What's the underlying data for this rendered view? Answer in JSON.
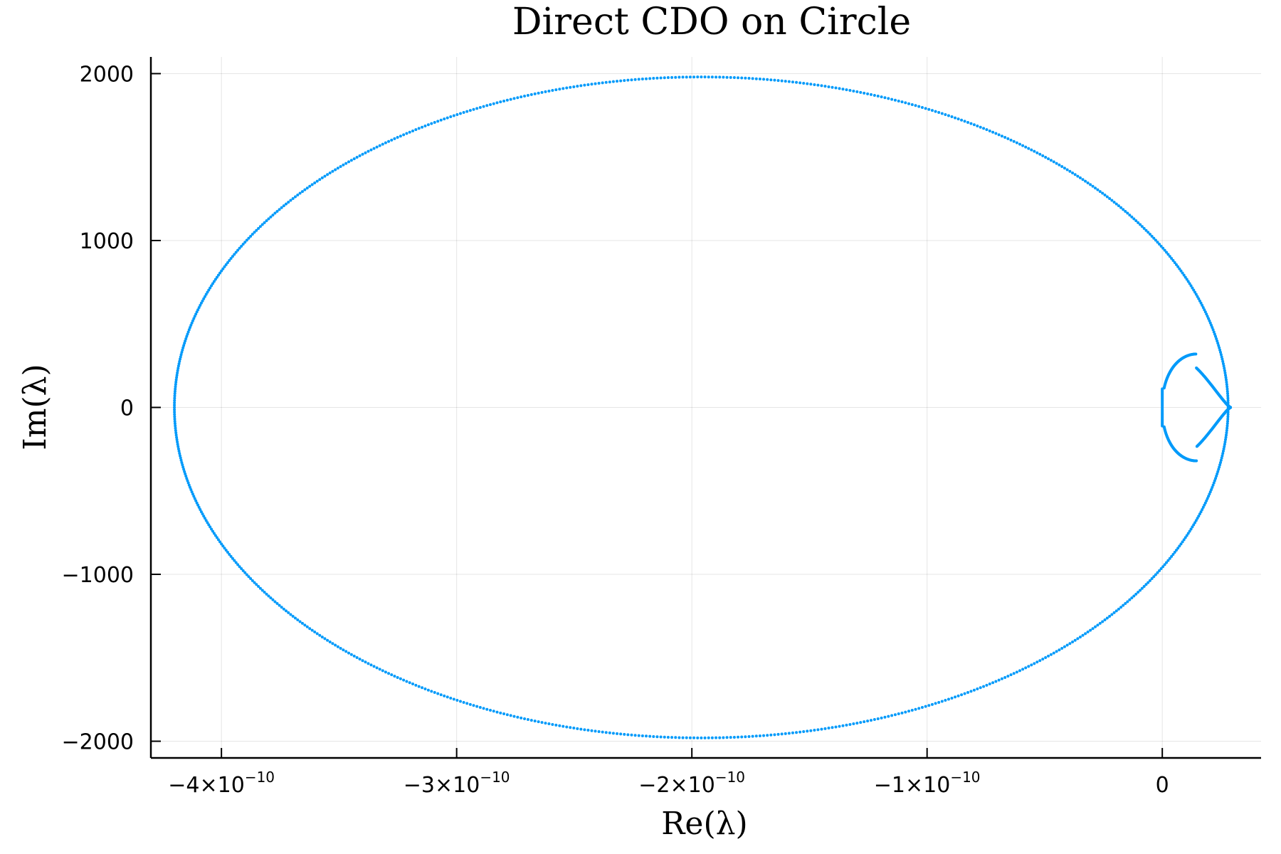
{
  "chart_data": {
    "type": "scatter",
    "title": "Direct CDO on Circle",
    "xlabel": "Re(λ)",
    "ylabel": "Im(λ)",
    "xlim": [
      -4.3e-10,
      4.2e-11
    ],
    "ylim": [
      -2100,
      2100
    ],
    "x_ticks": [
      {
        "value": -4e-10,
        "mantissa": "−4×10",
        "exponent": "−10"
      },
      {
        "value": -3e-10,
        "mantissa": "−3×10",
        "exponent": "−10"
      },
      {
        "value": -2e-10,
        "mantissa": "−2×10",
        "exponent": "−10"
      },
      {
        "value": -1e-10,
        "mantissa": "−1×10",
        "exponent": "−10"
      },
      {
        "value": 0,
        "mantissa": "0",
        "exponent": ""
      }
    ],
    "y_ticks": [
      {
        "value": 2000,
        "label": "2000"
      },
      {
        "value": 1000,
        "label": "1000"
      },
      {
        "value": 0,
        "label": "0"
      },
      {
        "value": -1000,
        "label": "−1000"
      },
      {
        "value": -2000,
        "label": "−2000"
      }
    ],
    "grid": true,
    "legend": "none",
    "series": [
      {
        "color": "#009AFA",
        "marker_radius": 2,
        "curves": [
          {
            "shape": "outer-ellipse",
            "center": [
              -1.96e-10,
              0
            ],
            "semi_axes": [
              2.24e-10,
              1980
            ],
            "points": 900
          },
          {
            "shape": "inner-loop",
            "x_range": [
              0,
              2.9e-11
            ],
            "y_extent": 320,
            "points": 400
          }
        ]
      }
    ],
    "colors": {
      "series": "#009AFA",
      "axis": "#000000",
      "grid": "#e6e6e6"
    }
  }
}
